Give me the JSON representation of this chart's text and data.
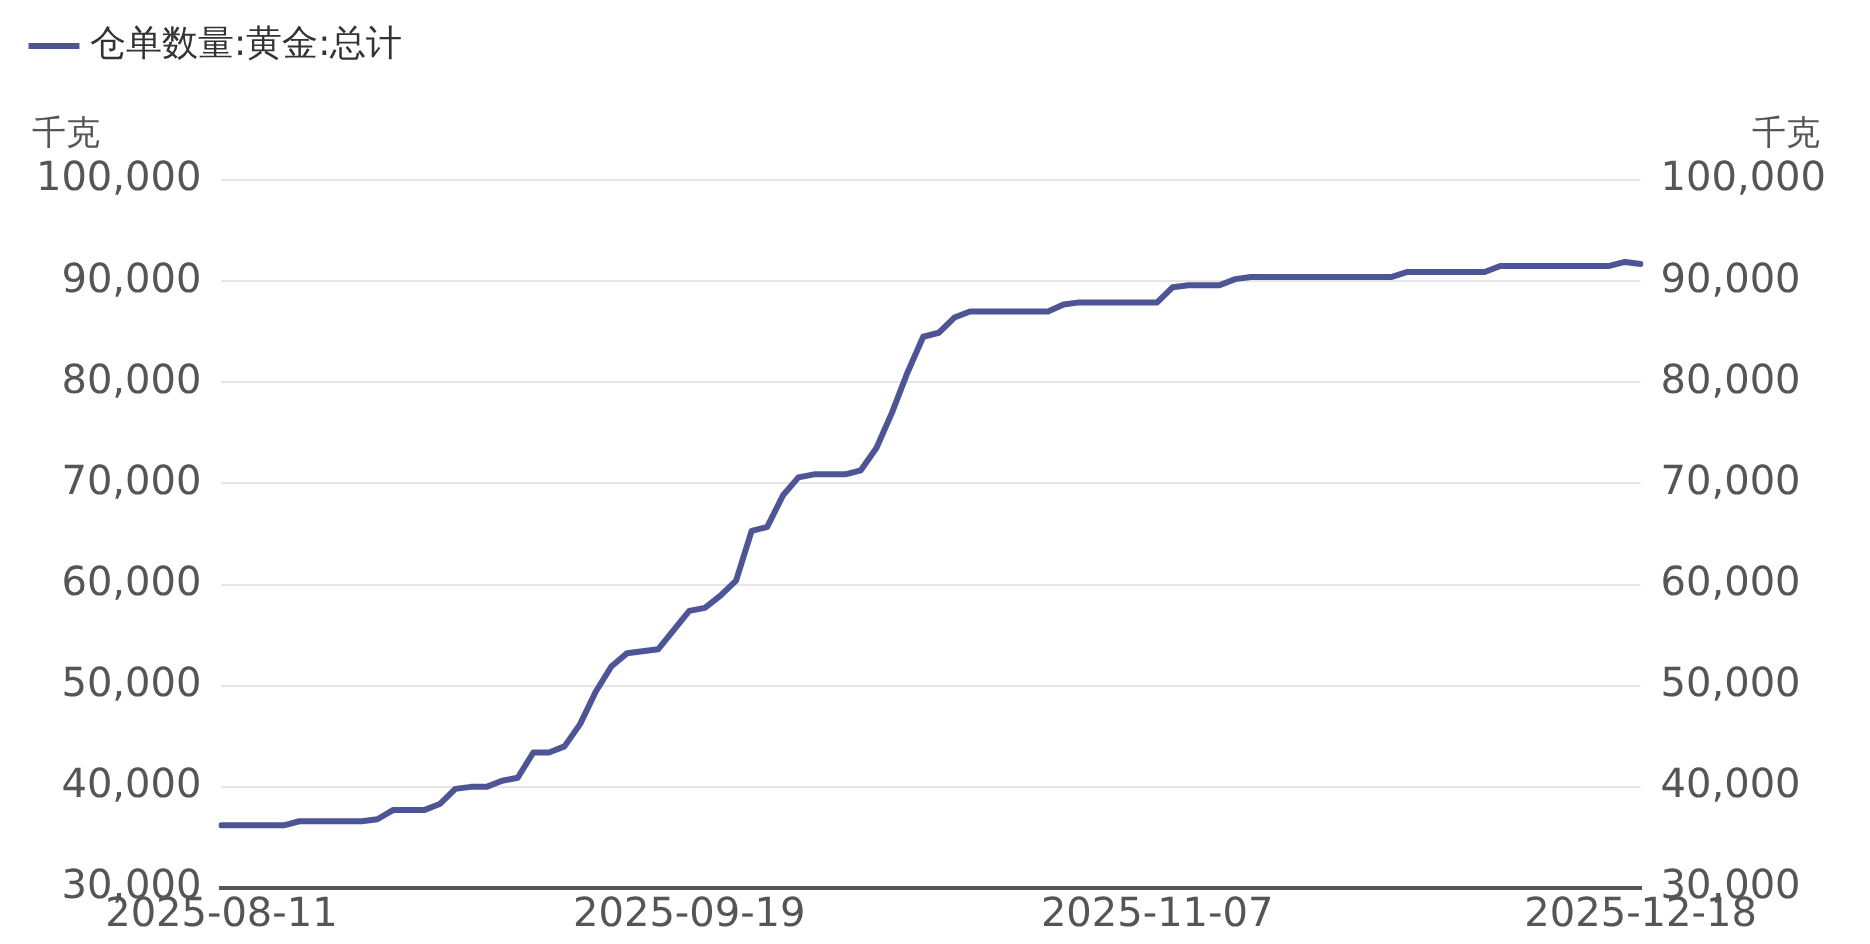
{
  "chart_data": {
    "type": "line",
    "ylabel": "千克",
    "y2label": "千克",
    "legend": "top left",
    "grid": "y",
    "marker": "none",
    "line_style": "solid",
    "categories": [
      "2025-08-11",
      null,
      null,
      null,
      null,
      null,
      null,
      null,
      null,
      null,
      null,
      null,
      null,
      null,
      null,
      null,
      null,
      null,
      null,
      null,
      null,
      null,
      null,
      null,
      null,
      null,
      null,
      null,
      null,
      null,
      "2025-09-19",
      null,
      null,
      null,
      null,
      null,
      null,
      null,
      null,
      null,
      null,
      null,
      null,
      null,
      null,
      null,
      null,
      null,
      null,
      null,
      null,
      null,
      null,
      null,
      null,
      null,
      null,
      null,
      null,
      null,
      "2025-11-07",
      null,
      null,
      null,
      null,
      null,
      null,
      null,
      null,
      null,
      null,
      null,
      null,
      null,
      null,
      null,
      null,
      null,
      null,
      null,
      null,
      null,
      null,
      null,
      null,
      null,
      null,
      null,
      null,
      null,
      null,
      "2025-12-18"
    ],
    "ylim": [
      30000,
      100000
    ],
    "yticks": [
      {
        "value": 30000,
        "label": "30,000"
      },
      {
        "value": 40000,
        "label": "40,000"
      },
      {
        "value": 50000,
        "label": "50,000"
      },
      {
        "value": 60000,
        "label": "60,000"
      },
      {
        "value": 70000,
        "label": "70,000"
      },
      {
        "value": 80000,
        "label": "80,000"
      },
      {
        "value": 90000,
        "label": "90,000"
      },
      {
        "value": 100000,
        "label": "100,000"
      }
    ],
    "y2lim": [
      30000,
      100000
    ],
    "y2ticks": [
      {
        "value": 30000,
        "label": "30,000"
      },
      {
        "value": 40000,
        "label": "40,000"
      },
      {
        "value": 50000,
        "label": "50,000"
      },
      {
        "value": 60000,
        "label": "60,000"
      },
      {
        "value": 70000,
        "label": "70,000"
      },
      {
        "value": 80000,
        "label": "80,000"
      },
      {
        "value": 90000,
        "label": "90,000"
      },
      {
        "value": 100000,
        "label": "100,000"
      }
    ],
    "series": [
      {
        "name": "仓单数量:黄金:总计",
        "color": "#4e5596",
        "axis": "y",
        "values": [
          36200,
          36200,
          36200,
          36200,
          36200,
          36600,
          36600,
          36600,
          36600,
          36600,
          36800,
          37700,
          37700,
          37700,
          38300,
          39800,
          40000,
          40000,
          40600,
          40900,
          43400,
          43400,
          44000,
          46200,
          49400,
          51900,
          53200,
          53400,
          53600,
          55500,
          57400,
          57700,
          58900,
          60400,
          65300,
          65700,
          68800,
          70600,
          70900,
          70900,
          70900,
          71300,
          73500,
          77000,
          81000,
          84500,
          84900,
          86400,
          87000,
          87000,
          87000,
          87000,
          87000,
          87000,
          87700,
          87900,
          87900,
          87900,
          87900,
          87900,
          87900,
          89400,
          89600,
          89600,
          89600,
          90200,
          90400,
          90400,
          90400,
          90400,
          90400,
          90400,
          90400,
          90400,
          90400,
          90400,
          90900,
          90900,
          90900,
          90900,
          90900,
          90900,
          91500,
          91500,
          91500,
          91500,
          91500,
          91500,
          91500,
          91500,
          91900,
          91700
        ]
      }
    ]
  }
}
